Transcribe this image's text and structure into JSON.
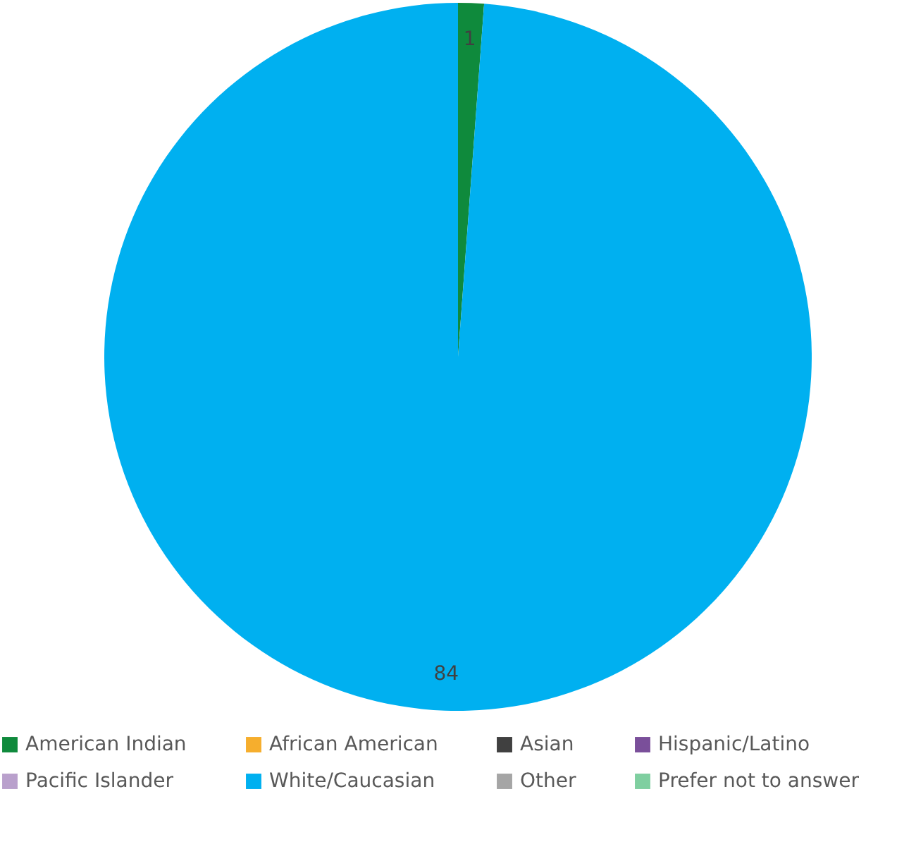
{
  "chart_data": {
    "type": "pie",
    "categories": [
      "American Indian",
      "African American",
      "Asian",
      "Hispanic/Latino",
      "Pacific Islander",
      "White/Caucasian",
      "Other",
      "Prefer not to answer"
    ],
    "values": [
      1,
      0,
      0,
      0,
      0,
      84,
      0,
      0
    ],
    "colors": [
      "#0f8a3c",
      "#f6ae2d",
      "#404040",
      "#7a4f9a",
      "#b9a0cc",
      "#00b0f0",
      "#a5a5a5",
      "#7fcfa0"
    ],
    "value_labels": [
      "1",
      null,
      null,
      null,
      null,
      "84",
      null,
      null
    ],
    "legend": "bottom"
  }
}
